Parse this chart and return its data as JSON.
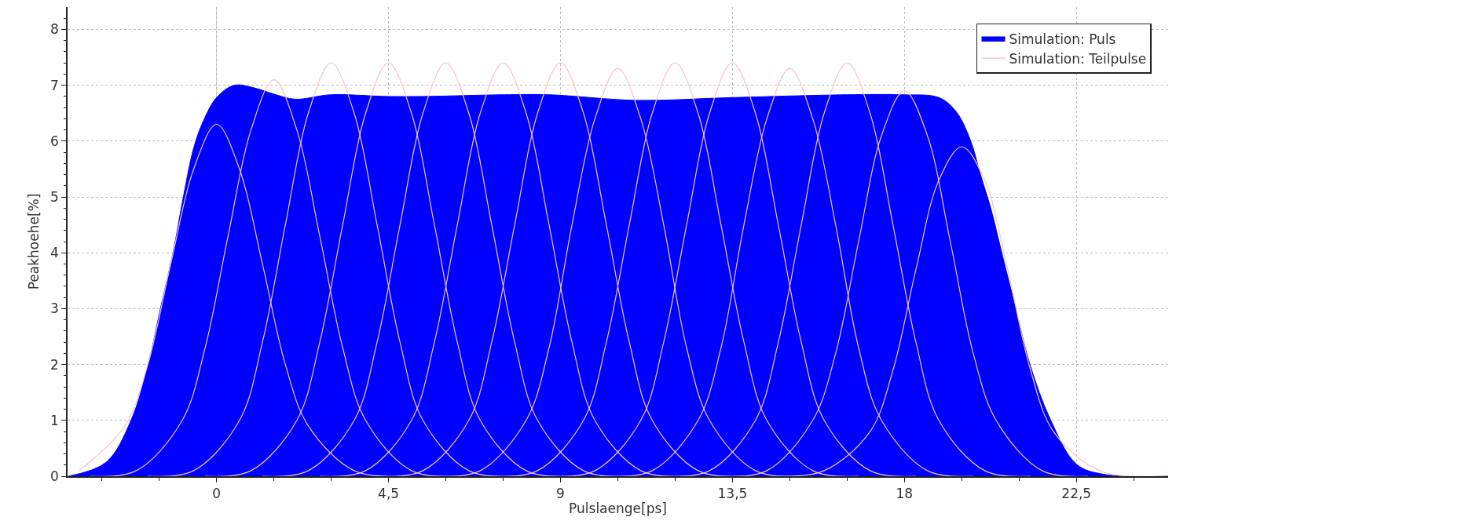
{
  "chart_data": {
    "type": "line",
    "xlabel": "Pulslaenge[ps]",
    "ylabel": "Peakhoehe[%]",
    "xlim": [
      -3.9,
      24.9
    ],
    "ylim": [
      0,
      8.4
    ],
    "xticks": [
      {
        "value": -3,
        "label": null
      },
      {
        "value": -1.5,
        "label": null
      },
      0,
      {
        "value": 1.5,
        "label": null
      },
      {
        "value": 3,
        "label": null
      },
      {
        "value": 4.5,
        "label": "4,5"
      },
      {
        "value": 6,
        "label": null
      },
      {
        "value": 7.5,
        "label": null
      },
      9,
      {
        "value": 10.5,
        "label": null
      },
      {
        "value": 12,
        "label": null
      },
      {
        "value": 13.5,
        "label": "13,5"
      },
      {
        "value": 15,
        "label": null
      },
      {
        "value": 16.5,
        "label": null
      },
      18,
      {
        "value": 19.5,
        "label": null
      },
      {
        "value": 21,
        "label": null
      },
      {
        "value": 22.5,
        "label": "22,5"
      },
      {
        "value": 24,
        "label": null
      }
    ],
    "yticks": [
      0,
      {
        "value": 0.2,
        "label": null
      },
      {
        "value": 0.4,
        "label": null
      },
      {
        "value": 0.6,
        "label": null
      },
      {
        "value": 0.8,
        "label": null
      },
      1,
      {
        "value": 1.2,
        "label": null
      },
      {
        "value": 1.4,
        "label": null
      },
      {
        "value": 1.6,
        "label": null
      },
      {
        "value": 1.8,
        "label": null
      },
      2,
      {
        "value": 2.2,
        "label": null
      },
      {
        "value": 2.4,
        "label": null
      },
      {
        "value": 2.6,
        "label": null
      },
      {
        "value": 2.8,
        "label": null
      },
      3,
      {
        "value": 3.2,
        "label": null
      },
      {
        "value": 3.4,
        "label": null
      },
      {
        "value": 3.6,
        "label": null
      },
      {
        "value": 3.8,
        "label": null
      },
      4,
      {
        "value": 4.2,
        "label": null
      },
      {
        "value": 4.4,
        "label": null
      },
      {
        "value": 4.6,
        "label": null
      },
      {
        "value": 4.8,
        "label": null
      },
      5,
      {
        "value": 5.2,
        "label": null
      },
      {
        "value": 5.4,
        "label": null
      },
      {
        "value": 5.6,
        "label": null
      },
      {
        "value": 5.8,
        "label": null
      },
      6,
      {
        "value": 6.2,
        "label": null
      },
      {
        "value": 6.4,
        "label": null
      },
      {
        "value": 6.6,
        "label": null
      },
      {
        "value": 6.8,
        "label": null
      },
      7,
      {
        "value": 7.2,
        "label": null
      },
      {
        "value": 7.4,
        "label": null
      },
      {
        "value": 7.6,
        "label": null
      },
      {
        "value": 7.8,
        "label": null
      },
      8,
      {
        "value": 8.2,
        "label": null
      }
    ],
    "grid": true,
    "legend": "top right",
    "marker": "none",
    "line_style": "solid",
    "ref_lines": [
      {
        "axis": "x",
        "value": 0,
        "color": "#c8c8c8"
      }
    ],
    "series": [
      {
        "name": "Simulation: Puls",
        "type": "area",
        "color": "#0000ff",
        "x": [
          -3.88,
          -2.89,
          -2.24,
          -1.79,
          -1.47,
          -1.14,
          -0.87,
          -0.59,
          -0.32,
          0,
          0.46,
          1.0,
          1.51,
          2.06,
          2.98,
          4.46,
          5.4,
          7.5,
          8.72,
          11.0,
          13.5,
          16.5,
          17.9,
          18.9,
          19.35,
          19.72,
          19.99,
          20.27,
          20.54,
          20.91,
          21.28,
          21.83,
          22.51,
          23.25,
          24.9
        ],
        "values": [
          0,
          0.25,
          1.0,
          2.0,
          3.0,
          4.0,
          5.0,
          5.9,
          6.4,
          6.78,
          7.0,
          6.95,
          6.84,
          6.75,
          6.83,
          6.8,
          6.8,
          6.83,
          6.83,
          6.73,
          6.78,
          6.83,
          6.83,
          6.78,
          6.53,
          6.03,
          5.4,
          4.77,
          4.02,
          3.01,
          2.01,
          1.0,
          0.21,
          0.03,
          0
        ]
      },
      {
        "name": "Simulation: Teilpulse",
        "color": "#f2c4c8",
        "x": [
          -3.6,
          -2.4,
          -1.8,
          -1.2,
          -0.6,
          0,
          0.6,
          1.2,
          1.8,
          2.4,
          3.6,
          4.8
        ],
        "values": [
          0.1,
          0.9,
          2,
          3.8,
          5.5,
          6.3,
          5.5,
          3.8,
          2,
          0.9,
          0.1,
          0
        ]
      },
      {
        "color": "#f2c4c8",
        "x": [
          -3.3,
          -2.1,
          -0.9,
          -0.3,
          0.3,
          0.9,
          1.5,
          2.1,
          2.7,
          3.3,
          3.9,
          5.1,
          6.3
        ],
        "values": [
          0,
          0.1,
          1,
          2.3,
          4.3,
          6.2,
          7.1,
          6.2,
          4.3,
          2.3,
          1,
          0.1,
          0
        ]
      },
      {
        "color": "#f2c4c8",
        "x": [
          -1.8,
          -0.6,
          0.6,
          1.2,
          1.8,
          2.4,
          3,
          3.6,
          4.2,
          4.8,
          5.4,
          6.6,
          7.8
        ],
        "values": [
          0,
          0.1,
          1,
          2.4,
          4.5,
          6.5,
          7.4,
          6.5,
          4.5,
          2.4,
          1,
          0.1,
          0
        ]
      },
      {
        "color": "#f2c4c8",
        "x": [
          -0.3,
          0.9,
          2.1,
          2.7,
          3.3,
          3.9,
          4.5,
          5.1,
          5.7,
          6.3,
          6.9,
          8.1,
          9.3
        ],
        "values": [
          0,
          0.1,
          1,
          2.4,
          4.5,
          6.5,
          7.4,
          6.5,
          4.5,
          2.4,
          1,
          0.1,
          0
        ]
      },
      {
        "color": "#f2c4c8",
        "x": [
          1.2,
          2.4,
          3.6,
          4.2,
          4.8,
          5.4,
          6,
          6.6,
          7.2,
          7.8,
          8.4,
          9.6,
          10.8
        ],
        "values": [
          0,
          0.1,
          1,
          2.4,
          4.5,
          6.5,
          7.4,
          6.5,
          4.5,
          2.4,
          1,
          0.1,
          0
        ]
      },
      {
        "color": "#f2c4c8",
        "x": [
          2.7,
          3.9,
          5.1,
          5.7,
          6.3,
          6.9,
          7.5,
          8.1,
          8.7,
          9.3,
          9.9,
          11.1,
          12.3
        ],
        "values": [
          0,
          0.1,
          1,
          2.4,
          4.5,
          6.5,
          7.4,
          6.5,
          4.5,
          2.4,
          1,
          0.1,
          0
        ]
      },
      {
        "color": "#f2c4c8",
        "x": [
          4.2,
          5.4,
          6.6,
          7.2,
          7.8,
          8.4,
          9,
          9.6,
          10.2,
          10.8,
          11.4,
          12.6,
          13.8
        ],
        "values": [
          0,
          0.1,
          1,
          2.4,
          4.5,
          6.5,
          7.4,
          6.5,
          4.5,
          2.4,
          1,
          0.1,
          0
        ]
      },
      {
        "color": "#f2c4c8",
        "x": [
          5.7,
          6.9,
          8.1,
          8.7,
          9.3,
          9.9,
          10.5,
          11.1,
          11.7,
          12.3,
          12.9,
          14.1,
          15.3
        ],
        "values": [
          0,
          0.1,
          1,
          2.3,
          4.5,
          6.4,
          7.3,
          6.4,
          4.5,
          2.3,
          1,
          0.1,
          0
        ]
      },
      {
        "color": "#f2c4c8",
        "x": [
          7.2,
          8.4,
          9.6,
          10.2,
          10.8,
          11.4,
          12,
          12.6,
          13.2,
          13.8,
          14.4,
          15.6,
          16.8
        ],
        "values": [
          0,
          0.1,
          1,
          2.4,
          4.5,
          6.5,
          7.4,
          6.5,
          4.5,
          2.4,
          1,
          0.1,
          0
        ]
      },
      {
        "color": "#f2c4c8",
        "x": [
          8.7,
          9.9,
          11.1,
          11.7,
          12.3,
          12.9,
          13.5,
          14.1,
          14.7,
          15.3,
          15.9,
          17.1,
          18.3
        ],
        "values": [
          0,
          0.1,
          1,
          2.4,
          4.5,
          6.5,
          7.4,
          6.5,
          4.5,
          2.4,
          1,
          0.1,
          0
        ]
      },
      {
        "color": "#f2c4c8",
        "x": [
          10.2,
          11.4,
          12.6,
          13.2,
          13.8,
          14.4,
          15,
          15.6,
          16.2,
          16.8,
          17.4,
          18.6,
          19.8
        ],
        "values": [
          0,
          0.1,
          1,
          2.3,
          4.5,
          6.4,
          7.3,
          6.4,
          4.5,
          2.3,
          1,
          0.1,
          0
        ]
      },
      {
        "color": "#f2c4c8",
        "x": [
          11.7,
          12.9,
          14.1,
          14.7,
          15.3,
          15.9,
          16.5,
          17.1,
          17.7,
          18.3,
          18.9,
          20.1,
          21.3
        ],
        "values": [
          0,
          0.1,
          1,
          2.4,
          4.5,
          6.5,
          7.4,
          6.5,
          4.5,
          2.4,
          1,
          0.1,
          0
        ]
      },
      {
        "color": "#f2c4c8",
        "x": [
          13.2,
          14.4,
          15.6,
          16.2,
          16.8,
          17.4,
          18,
          18.6,
          19.2,
          19.8,
          20.4,
          21.6,
          22.8
        ],
        "values": [
          0,
          0.1,
          1,
          2.2,
          4.2,
          6.1,
          6.9,
          6.1,
          4.2,
          2.2,
          1,
          0.1,
          0
        ]
      },
      {
        "color": "#f2c4c8",
        "x": [
          14.7,
          15.9,
          17.1,
          17.7,
          18.3,
          18.9,
          19.5,
          20.1,
          20.7,
          21.3,
          21.9,
          23.1,
          24.3
        ],
        "values": [
          0,
          0.1,
          0.8,
          1.9,
          3.7,
          5.3,
          5.9,
          5.3,
          3.7,
          1.9,
          0.8,
          0.1,
          0
        ]
      }
    ]
  }
}
